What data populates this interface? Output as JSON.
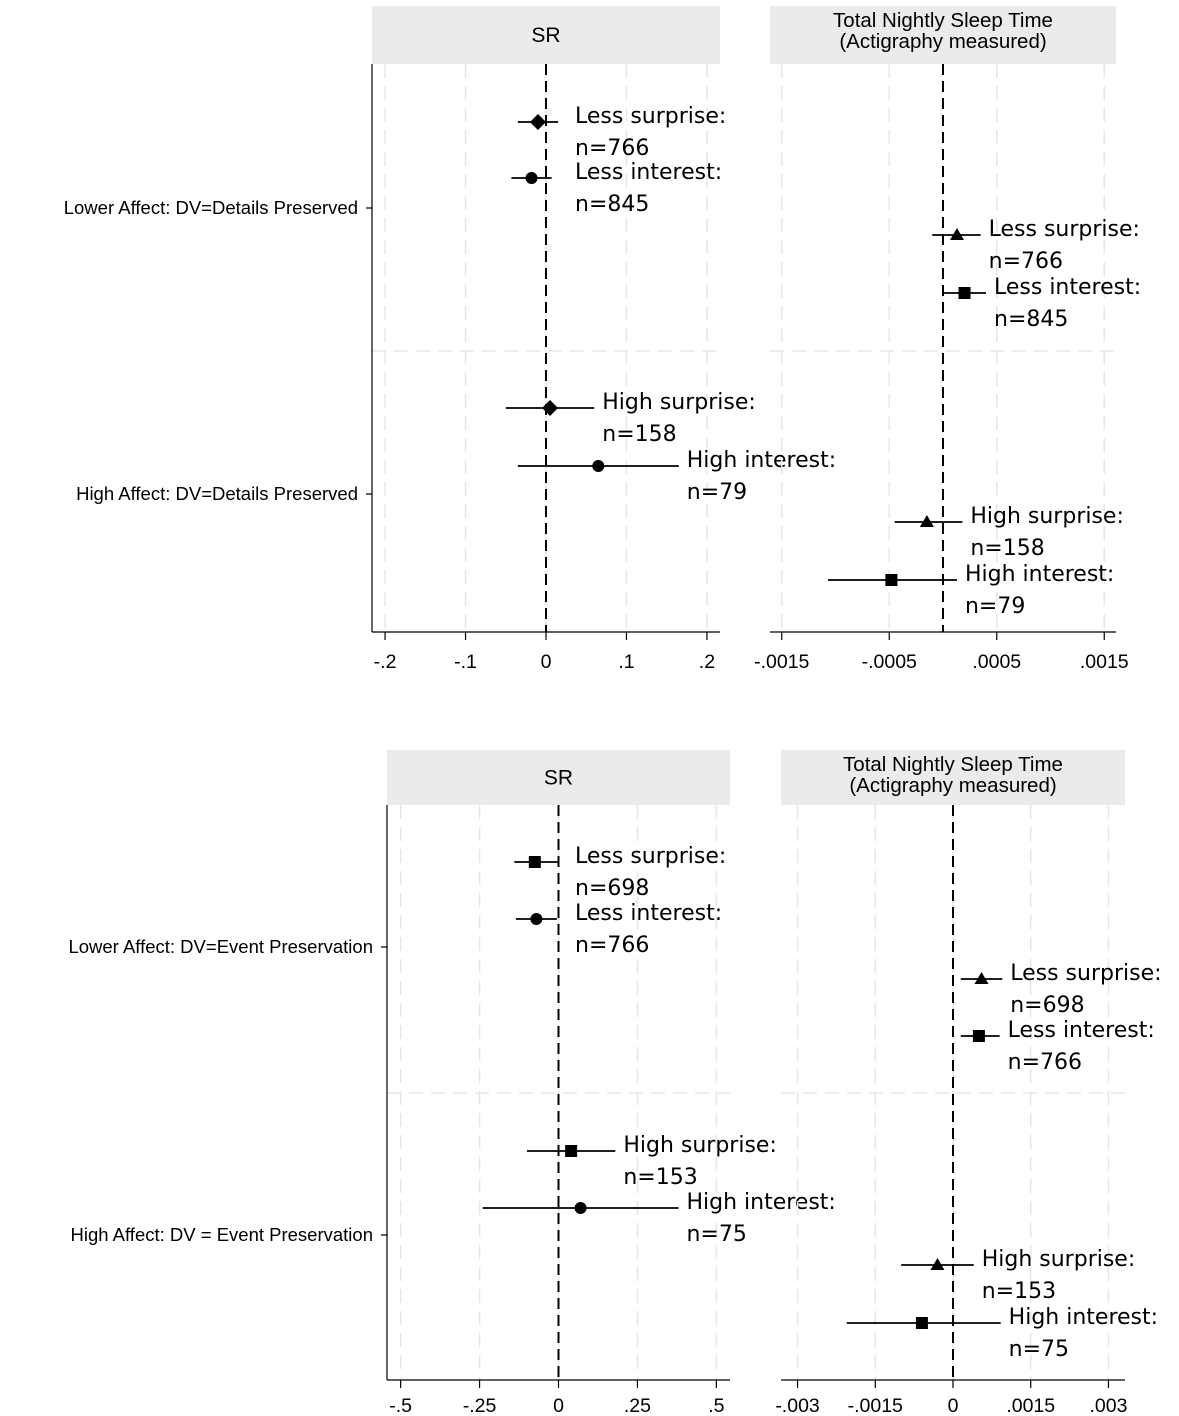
{
  "chart_data": [
    {
      "type": "coefficient-plot",
      "row_labels": [
        "Lower Affect: DV=Details Preserved",
        "High Affect: DV=Details Preserved"
      ],
      "panels": [
        {
          "title": [
            "SR"
          ],
          "xlim": [
            -0.215,
            0.215
          ],
          "xticks": [
            -0.2,
            -0.1,
            0,
            0.1,
            0.2
          ],
          "xtick_labels": [
            "-.2",
            "-.1",
            "0",
            ".1",
            ".2"
          ],
          "points": [
            {
              "row": 0,
              "slot": 0,
              "marker": "diamond",
              "estimate": -0.01,
              "ci": [
                -0.035,
                0.015
              ],
              "label": [
                "Less surprise:",
                "n=766"
              ]
            },
            {
              "row": 0,
              "slot": 1,
              "marker": "circle",
              "estimate": -0.018,
              "ci": [
                -0.043,
                0.007
              ],
              "label": [
                "Less interest:",
                "n=845"
              ]
            },
            {
              "row": 1,
              "slot": 0,
              "marker": "diamond",
              "estimate": 0.005,
              "ci": [
                -0.05,
                0.06
              ],
              "label": [
                "High surprise:",
                "n=158"
              ]
            },
            {
              "row": 1,
              "slot": 1,
              "marker": "circle",
              "estimate": 0.065,
              "ci": [
                -0.035,
                0.165
              ],
              "label": [
                "High interest:",
                "n=79"
              ]
            }
          ]
        },
        {
          "title": [
            "Total Nightly Sleep Time",
            "(Actigraphy measured)"
          ],
          "xlim": [
            -0.0016,
            0.0016
          ],
          "xticks": [
            -0.0015,
            -0.0005,
            0.0005,
            0.0015
          ],
          "xtick_labels": [
            "-.0015",
            "-.0005",
            ".0005",
            ".0015"
          ],
          "points": [
            {
              "row": 0,
              "slot": 2,
              "marker": "triangle",
              "estimate": 0.00013,
              "ci": [
                -0.0001,
                0.00035
              ],
              "label": [
                "Less surprise:",
                "n=766"
              ]
            },
            {
              "row": 0,
              "slot": 3,
              "marker": "square",
              "estimate": 0.0002,
              "ci": [
                0.0,
                0.0004
              ],
              "label": [
                "Less interest:",
                "n=845"
              ]
            },
            {
              "row": 1,
              "slot": 2,
              "marker": "triangle",
              "estimate": -0.00015,
              "ci": [
                -0.00045,
                0.00018
              ],
              "label": [
                "High surprise:",
                "n=158"
              ]
            },
            {
              "row": 1,
              "slot": 3,
              "marker": "square",
              "estimate": -0.00048,
              "ci": [
                -0.00107,
                0.00013
              ],
              "label": [
                "High interest:",
                "n=79"
              ]
            }
          ]
        }
      ],
      "reference_line": 0,
      "grid": "vertical dashed"
    },
    {
      "type": "coefficient-plot",
      "row_labels": [
        "Lower Affect: DV=Event Preservation",
        "High Affect: DV = Event Preservation"
      ],
      "panels": [
        {
          "title": [
            "SR"
          ],
          "xlim": [
            -0.54,
            0.54
          ],
          "xticks": [
            -0.5,
            -0.25,
            0,
            0.25,
            0.5
          ],
          "xtick_labels": [
            "-.5",
            "-.25",
            "0",
            ".25",
            ".5"
          ],
          "points": [
            {
              "row": 0,
              "slot": 0,
              "marker": "square",
              "estimate": -0.075,
              "ci": [
                -0.14,
                0.0
              ],
              "label": [
                "Less surprise:",
                "n=698"
              ]
            },
            {
              "row": 0,
              "slot": 1,
              "marker": "circle",
              "estimate": -0.07,
              "ci": [
                -0.135,
                -0.005
              ],
              "label": [
                "Less interest:",
                "n=766"
              ]
            },
            {
              "row": 1,
              "slot": 0,
              "marker": "square",
              "estimate": 0.04,
              "ci": [
                -0.1,
                0.18
              ],
              "label": [
                "High surprise:",
                "n=153"
              ]
            },
            {
              "row": 1,
              "slot": 1,
              "marker": "circle",
              "estimate": 0.07,
              "ci": [
                -0.24,
                0.38
              ],
              "label": [
                "High interest:",
                "n=75"
              ]
            }
          ]
        },
        {
          "title": [
            "Total Nightly Sleep Time",
            "(Actigraphy measured)"
          ],
          "xlim": [
            -0.0033,
            0.0033
          ],
          "xticks": [
            -0.003,
            -0.0015,
            0,
            0.0015,
            0.003
          ],
          "xtick_labels": [
            "-.003",
            "-.0015",
            "0",
            ".0015",
            ".003"
          ],
          "points": [
            {
              "row": 0,
              "slot": 2,
              "marker": "triangle",
              "estimate": 0.00055,
              "ci": [
                0.00015,
                0.00095
              ],
              "label": [
                "Less surprise:",
                "n=698"
              ]
            },
            {
              "row": 0,
              "slot": 3,
              "marker": "square",
              "estimate": 0.0005,
              "ci": [
                0.00015,
                0.0009
              ],
              "label": [
                "Less interest:",
                "n=766"
              ]
            },
            {
              "row": 1,
              "slot": 2,
              "marker": "triangle",
              "estimate": -0.0003,
              "ci": [
                -0.001,
                0.0004
              ],
              "label": [
                "High surprise:",
                "n=153"
              ]
            },
            {
              "row": 1,
              "slot": 3,
              "marker": "square",
              "estimate": -0.0006,
              "ci": [
                -0.00205,
                0.00092
              ],
              "label": [
                "High interest:",
                "n=75"
              ]
            }
          ]
        }
      ],
      "reference_line": 0,
      "grid": "vertical dashed"
    }
  ]
}
